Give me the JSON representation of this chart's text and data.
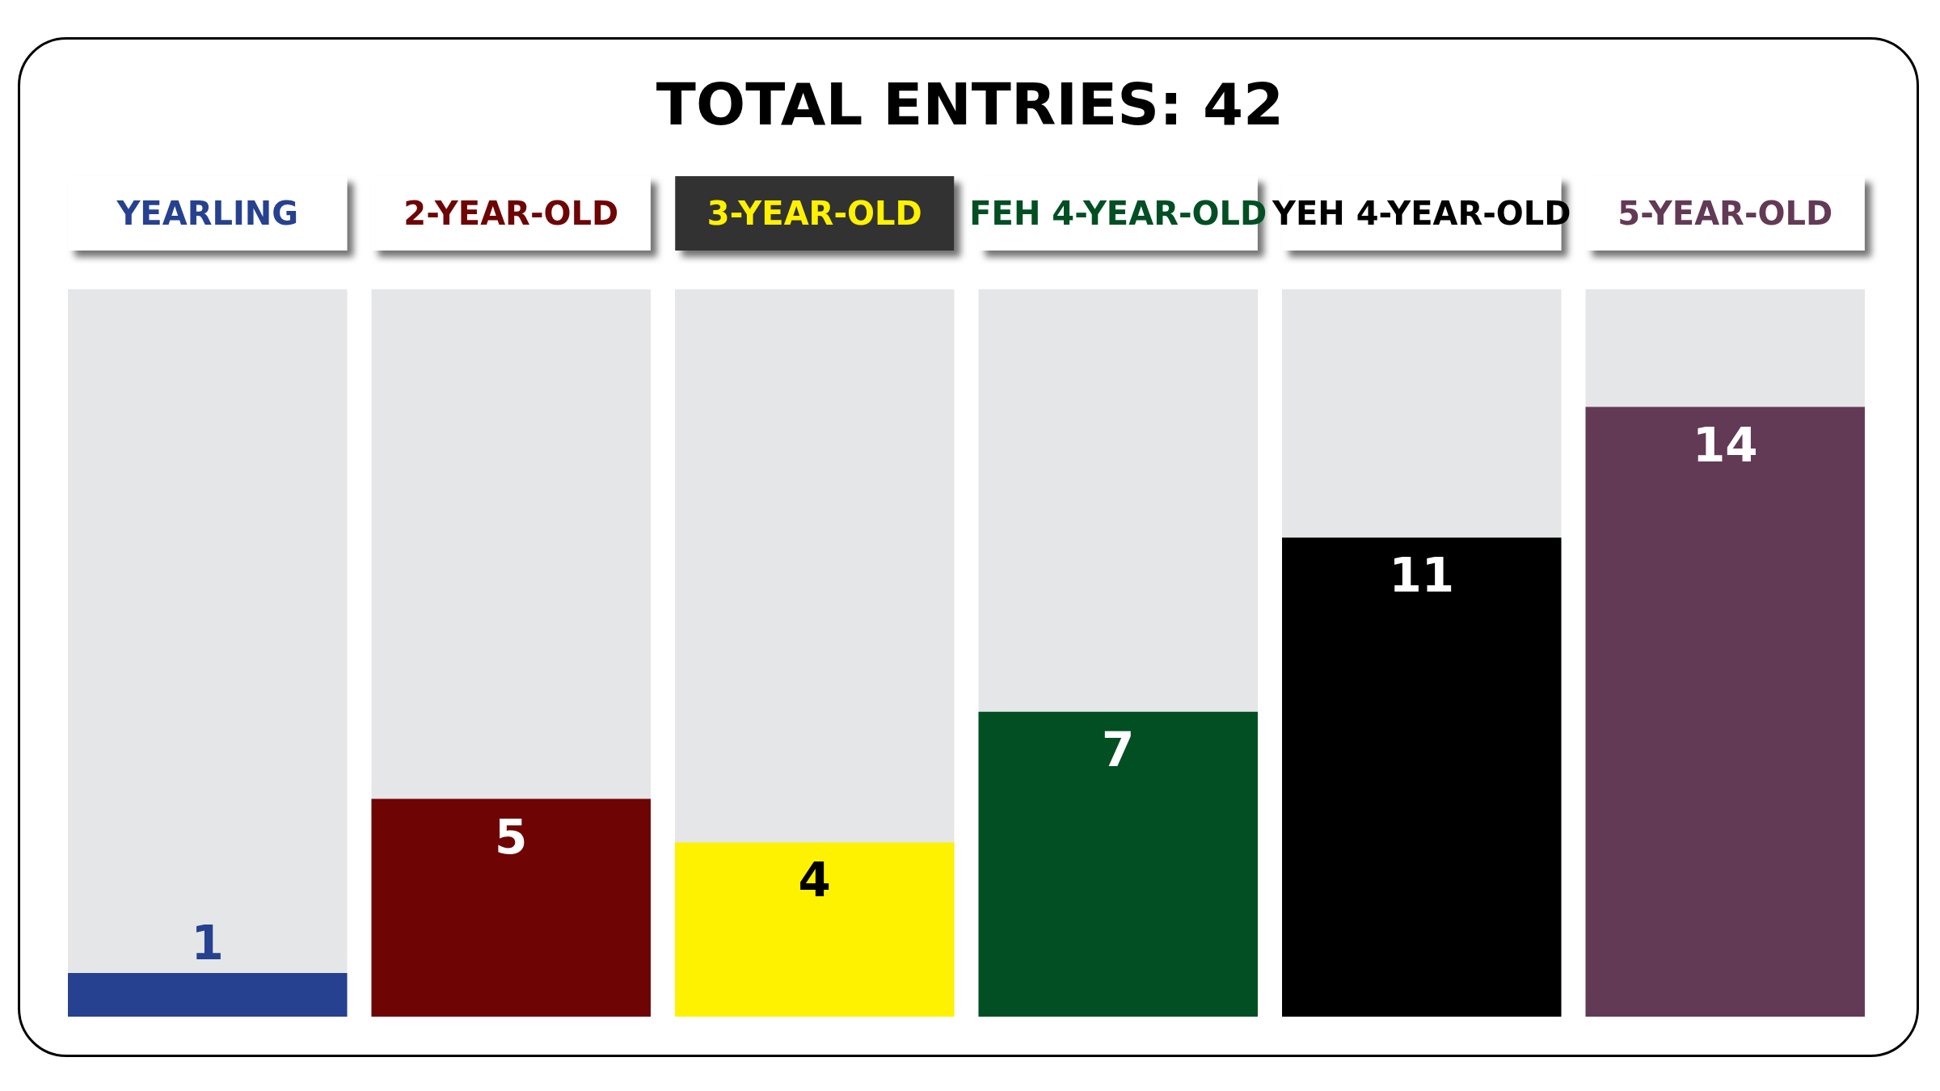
{
  "chart_data": {
    "type": "bar",
    "title": "TOTAL ENTRIES: 42",
    "categories": [
      "YEARLING",
      "2-YEAR-OLD",
      "3-YEAR-OLD",
      "FEH 4-YEAR-OLD",
      "YEH 4-YEAR-OLD",
      "5-YEAR-OLD"
    ],
    "values": [
      1,
      5,
      4,
      7,
      11,
      14
    ],
    "colors": [
      "#26418f",
      "#6e0404",
      "#fff200",
      "#024f24",
      "#000000",
      "#633a55"
    ],
    "ylim": [
      0,
      16.7
    ],
    "tick_labels": "x",
    "grid": false,
    "data_labels": true
  }
}
